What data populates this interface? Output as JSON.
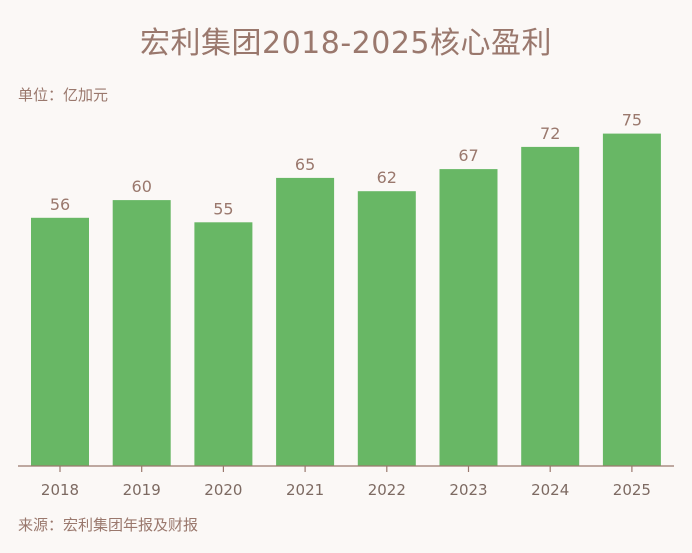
{
  "chart_data": {
    "type": "bar",
    "title": "宏利集团2018-2025核心盈利",
    "unit_label": "单位：亿加元",
    "source": "来源：宏利集团年报及财报",
    "categories": [
      "2018",
      "2019",
      "2020",
      "2021",
      "2022",
      "2023",
      "2024",
      "2025"
    ],
    "values": [
      56,
      60,
      55,
      65,
      62,
      67,
      72,
      75
    ],
    "ylim": [
      0,
      88
    ],
    "grid": false,
    "legend": "none",
    "bar_color": "#68b765",
    "text_color": "#9a786d"
  }
}
